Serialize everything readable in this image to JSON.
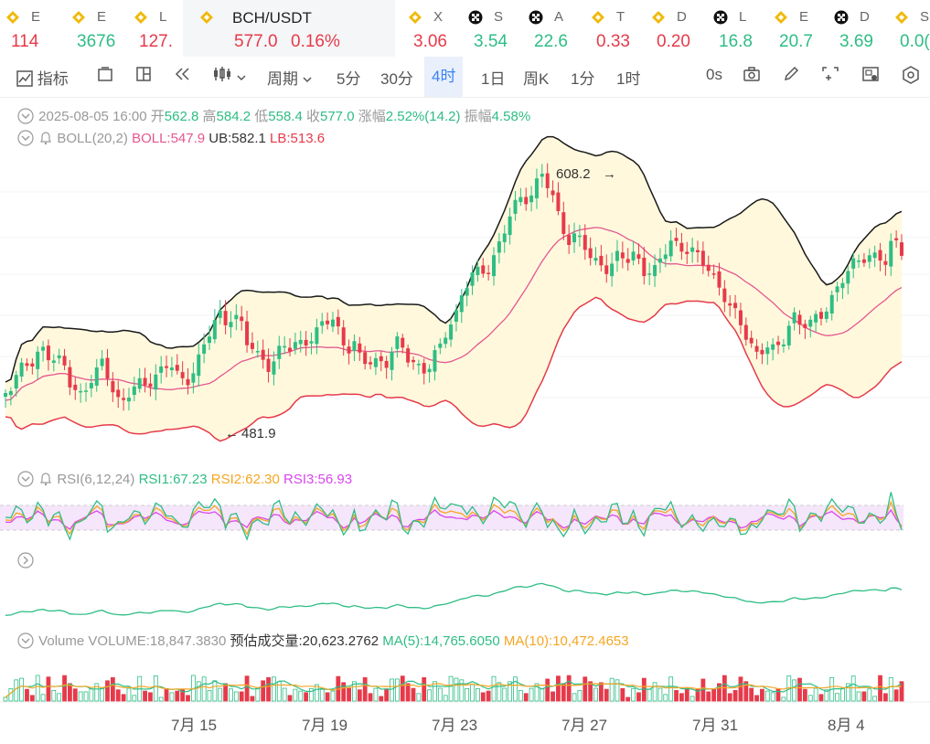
{
  "tickers": [
    {
      "sym": "E",
      "val": "114",
      "dir": "dn",
      "icon": "binance-icon"
    },
    {
      "sym": "E",
      "val": "3676",
      "dir": "up",
      "icon": "binance-icon"
    },
    {
      "sym": "L",
      "val": "127.",
      "dir": "dn",
      "icon": "binance-icon"
    },
    {
      "sym": "BCH/USDT",
      "val": "577.0",
      "pct": "0.16%",
      "dir": "dn",
      "icon": "binance-icon",
      "active": true
    },
    {
      "sym": "X",
      "val": "3.06",
      "dir": "dn",
      "icon": "binance-icon"
    },
    {
      "sym": "S",
      "val": "3.54",
      "dir": "up",
      "icon": "okx-icon"
    },
    {
      "sym": "A",
      "val": "22.6",
      "dir": "up",
      "icon": "okx-icon"
    },
    {
      "sym": "T",
      "val": "0.33",
      "dir": "dn",
      "icon": "binance-icon"
    },
    {
      "sym": "D",
      "val": "0.20",
      "dir": "dn",
      "icon": "binance-icon"
    },
    {
      "sym": "L",
      "val": "16.8",
      "dir": "up",
      "icon": "okx-icon"
    },
    {
      "sym": "E",
      "val": "20.7",
      "dir": "up",
      "icon": "binance-icon"
    },
    {
      "sym": "D",
      "val": "3.69",
      "dir": "up",
      "icon": "okx-icon"
    },
    {
      "sym": "S",
      "val": "0.0(",
      "dir": "up",
      "icon": "binance-icon"
    }
  ],
  "toolbar": {
    "indicators": "指标",
    "period": "周期",
    "intervals": [
      "5分",
      "30分",
      "4时",
      "1日",
      "周K",
      "1分",
      "1时"
    ],
    "active_interval": "4时",
    "countdown": "0s"
  },
  "ohlc": {
    "date": "2025-08-05 16:00",
    "open_label": "开",
    "open": "562.8",
    "high_label": "高",
    "high": "584.2",
    "low_label": "低",
    "low": "558.4",
    "close_label": "收",
    "close": "577.0",
    "change_label": "涨幅",
    "change": "2.52%(14.2)",
    "amp_label": "振幅",
    "amp": "4.58%"
  },
  "boll": {
    "label": "BOLL(20,2)",
    "mid": "BOLL:547.9",
    "ub": "UB:582.1",
    "lb": "LB:513.6"
  },
  "price_marks": {
    "high": "608.2",
    "low": "481.9"
  },
  "rsi": {
    "label": "RSI(6,12,24)",
    "rsi1": "RSI1:67.23",
    "rsi2": "RSI2:62.30",
    "rsi3": "RSI3:56.93"
  },
  "volume": {
    "label": "Volume",
    "vol": "VOLUME:18,847.3830",
    "est": "预估成交量:20,623.2762",
    "ma5": "MA(5):14,765.6050",
    "ma10": "MA(10):10,472.4653"
  },
  "x_labels": [
    "7月 15",
    "7月 19",
    "7月 23",
    "7月 27",
    "7月 31",
    "8月 4"
  ],
  "colors": {
    "up": "#2ebd85",
    "down": "#e63a4a",
    "boll_mid": "#e5578f",
    "boll_band": "#fff8dc",
    "rsi1": "#2ebd85",
    "rsi2": "#f5a623",
    "rsi3": "#d946ef",
    "accent": "#3b82f6"
  },
  "chart_data": {
    "type": "candlestick",
    "x_ticks": [
      "7月 15",
      "7月 19",
      "7月 23",
      "7月 27",
      "7月 31",
      "8月 4"
    ],
    "visible_high": 608.2,
    "visible_low": 481.9,
    "last_candle": {
      "open": 562.8,
      "high": 584.2,
      "low": 558.4,
      "close": 577.0
    },
    "boll_last": {
      "mid": 547.9,
      "ub": 582.1,
      "lb": 513.6
    },
    "rsi_last": {
      "rsi1": 67.23,
      "rsi2": 62.3,
      "rsi3": 56.93
    }
  }
}
